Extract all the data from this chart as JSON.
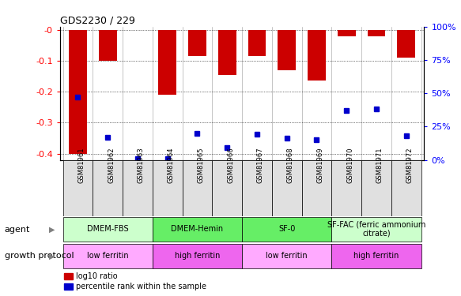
{
  "title": "GDS2230 / 229",
  "samples": [
    "GSM81961",
    "GSM81962",
    "GSM81963",
    "GSM81964",
    "GSM81965",
    "GSM81966",
    "GSM81967",
    "GSM81968",
    "GSM81969",
    "GSM81970",
    "GSM81971",
    "GSM81972"
  ],
  "log10_ratio": [
    -0.4,
    -0.1,
    -0.001,
    -0.21,
    -0.085,
    -0.145,
    -0.085,
    -0.13,
    -0.165,
    -0.022,
    -0.022,
    -0.09
  ],
  "percentile_rank": [
    47,
    17,
    1,
    1,
    20,
    9,
    19,
    16,
    15,
    37,
    38,
    18
  ],
  "ylim": [
    -0.42,
    0.01
  ],
  "yticks_left": [
    0.0,
    -0.1,
    -0.2,
    -0.3,
    -0.4
  ],
  "yticks_right_pct": [
    100,
    75,
    50,
    25,
    0
  ],
  "bar_color": "#cc0000",
  "percentile_color": "#0000cc",
  "agent_groups": [
    {
      "label": "DMEM-FBS",
      "start": 0,
      "end": 2,
      "color": "#ccffcc"
    },
    {
      "label": "DMEM-Hemin",
      "start": 3,
      "end": 5,
      "color": "#66ee66"
    },
    {
      "label": "SF-0",
      "start": 6,
      "end": 8,
      "color": "#66ee66"
    },
    {
      "label": "SF-FAC (ferric ammonium\ncitrate)",
      "start": 9,
      "end": 11,
      "color": "#ccffcc"
    }
  ],
  "growth_groups": [
    {
      "label": "low ferritin",
      "start": 0,
      "end": 2,
      "color": "#ffaaff"
    },
    {
      "label": "high ferritin",
      "start": 3,
      "end": 5,
      "color": "#ee66ee"
    },
    {
      "label": "low ferritin",
      "start": 6,
      "end": 8,
      "color": "#ffaaff"
    },
    {
      "label": "high ferritin",
      "start": 9,
      "end": 11,
      "color": "#ee66ee"
    }
  ],
  "label_agent": "agent",
  "label_growth": "growth protocol",
  "legend_red": "log10 ratio",
  "legend_blue": "percentile rank within the sample"
}
